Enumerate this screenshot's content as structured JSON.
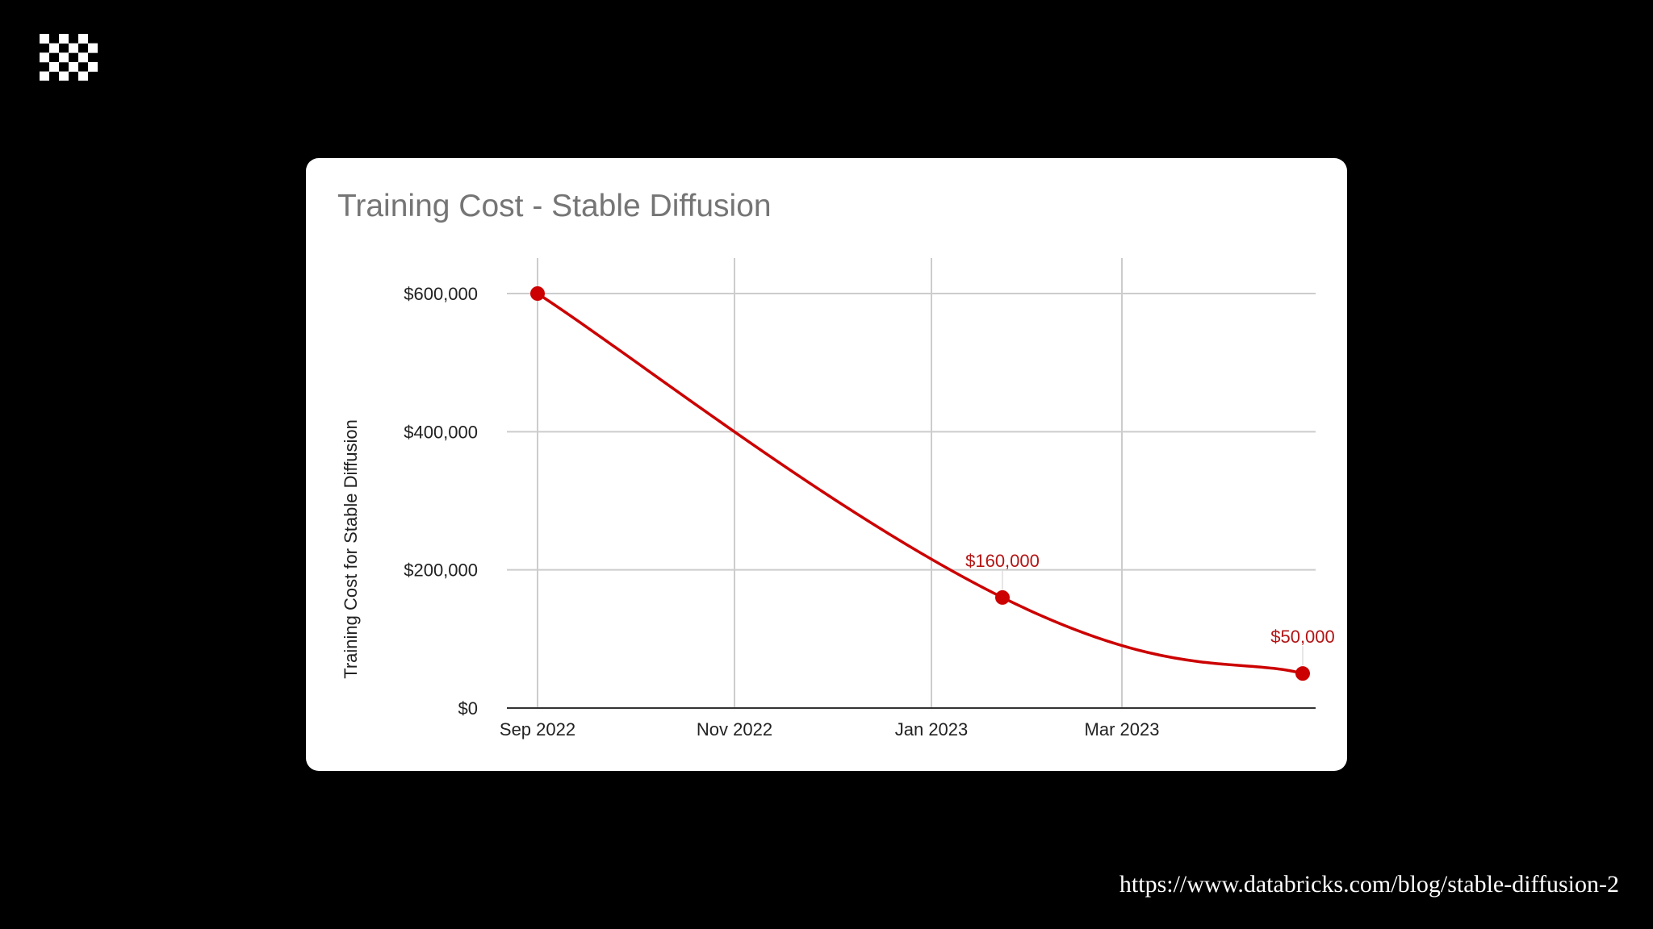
{
  "brand": {
    "logo_icon": "checkered-grid-logo-icon",
    "logo_color": "#ffffff"
  },
  "source_url": "https://www.databricks.com/blog/stable-diffusion-2",
  "chart_data": {
    "type": "line",
    "title": "Training Cost - Stable Diffusion",
    "xlabel": "",
    "ylabel": "Training Cost for Stable Diffusion",
    "x_tick_labels": [
      "Sep 2022",
      "Nov 2022",
      "Jan 2023",
      "Mar 2023"
    ],
    "x_ticks": [
      "2022-09-01",
      "2022-11-01",
      "2023-01-01",
      "2023-03-01"
    ],
    "y_tick_labels": [
      "$0",
      "$200,000",
      "$400,000",
      "$600,000"
    ],
    "y_ticks": [
      0,
      200000,
      400000,
      600000
    ],
    "xlim": [
      "2022-08-25",
      "2023-04-30"
    ],
    "ylim": [
      0,
      600000
    ],
    "grid": true,
    "legend": "none",
    "series": [
      {
        "color": "#cc0000",
        "points": [
          {
            "x": "2022-09-01",
            "y": 600000,
            "label": ""
          },
          {
            "x": "2023-01-23",
            "y": 160000,
            "label": "$160,000"
          },
          {
            "x": "2023-04-26",
            "y": 50000,
            "label": "$50,000"
          }
        ]
      }
    ]
  }
}
